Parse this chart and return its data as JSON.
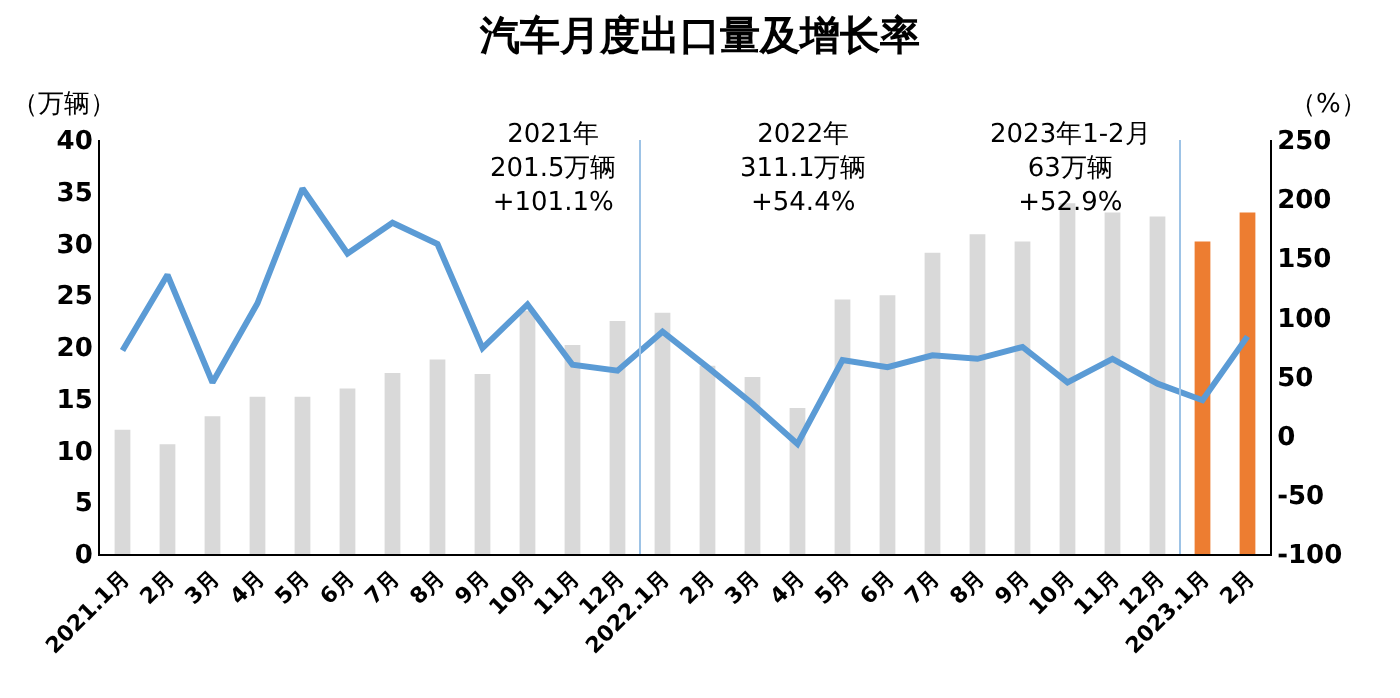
{
  "chart_data": {
    "type": "bar",
    "title": "汽车月度出口量及增长率",
    "ylabel": "（万辆）",
    "y2label": "（%）",
    "categories": [
      "2021.1月",
      "2月",
      "3月",
      "4月",
      "5月",
      "6月",
      "7月",
      "8月",
      "9月",
      "10月",
      "11月",
      "12月",
      "2022.1月",
      "2月",
      "3月",
      "4月",
      "5月",
      "6月",
      "7月",
      "8月",
      "9月",
      "10月",
      "11月",
      "12月",
      "2023.1月",
      "2月"
    ],
    "series": [
      {
        "values": [
          12.0,
          10.6,
          13.3,
          15.2,
          15.2,
          16.0,
          17.5,
          18.8,
          17.4,
          23.5,
          20.2,
          22.5,
          23.3,
          18.2,
          17.1,
          14.1,
          24.6,
          25.0,
          29.1,
          30.9,
          30.2,
          33.9,
          33.0,
          32.6,
          30.2,
          33.0
        ],
        "colors": [
          "#d9d9d9",
          "#d9d9d9",
          "#d9d9d9",
          "#d9d9d9",
          "#d9d9d9",
          "#d9d9d9",
          "#d9d9d9",
          "#d9d9d9",
          "#d9d9d9",
          "#d9d9d9",
          "#d9d9d9",
          "#d9d9d9",
          "#d9d9d9",
          "#d9d9d9",
          "#d9d9d9",
          "#d9d9d9",
          "#d9d9d9",
          "#d9d9d9",
          "#d9d9d9",
          "#d9d9d9",
          "#d9d9d9",
          "#d9d9d9",
          "#d9d9d9",
          "#d9d9d9",
          "#ed7d31",
          "#ed7d31"
        ]
      },
      {
        "type": "line",
        "axis": "y2",
        "color": "#5b9bd5",
        "values": [
          72,
          136,
          45,
          112,
          209,
          154,
          180,
          162,
          74,
          111,
          60,
          55,
          88,
          58,
          27,
          -7,
          64,
          58,
          68,
          65,
          75,
          45,
          65,
          44,
          30,
          84
        ]
      }
    ],
    "ylim": [
      0,
      40
    ],
    "yticks": [
      0,
      5,
      10,
      15,
      20,
      25,
      30,
      35,
      40
    ],
    "y2lim": [
      -100,
      250
    ],
    "y2ticks": [
      -100,
      -50,
      0,
      50,
      100,
      150,
      200,
      250
    ],
    "annotations": [
      "2021年\n201.5万辆\n+101.1%",
      "2022年\n311.1万辆\n+54.4%",
      "2023年1-2月\n63万辆\n+52.9%"
    ],
    "grid": false,
    "marker": "none"
  }
}
